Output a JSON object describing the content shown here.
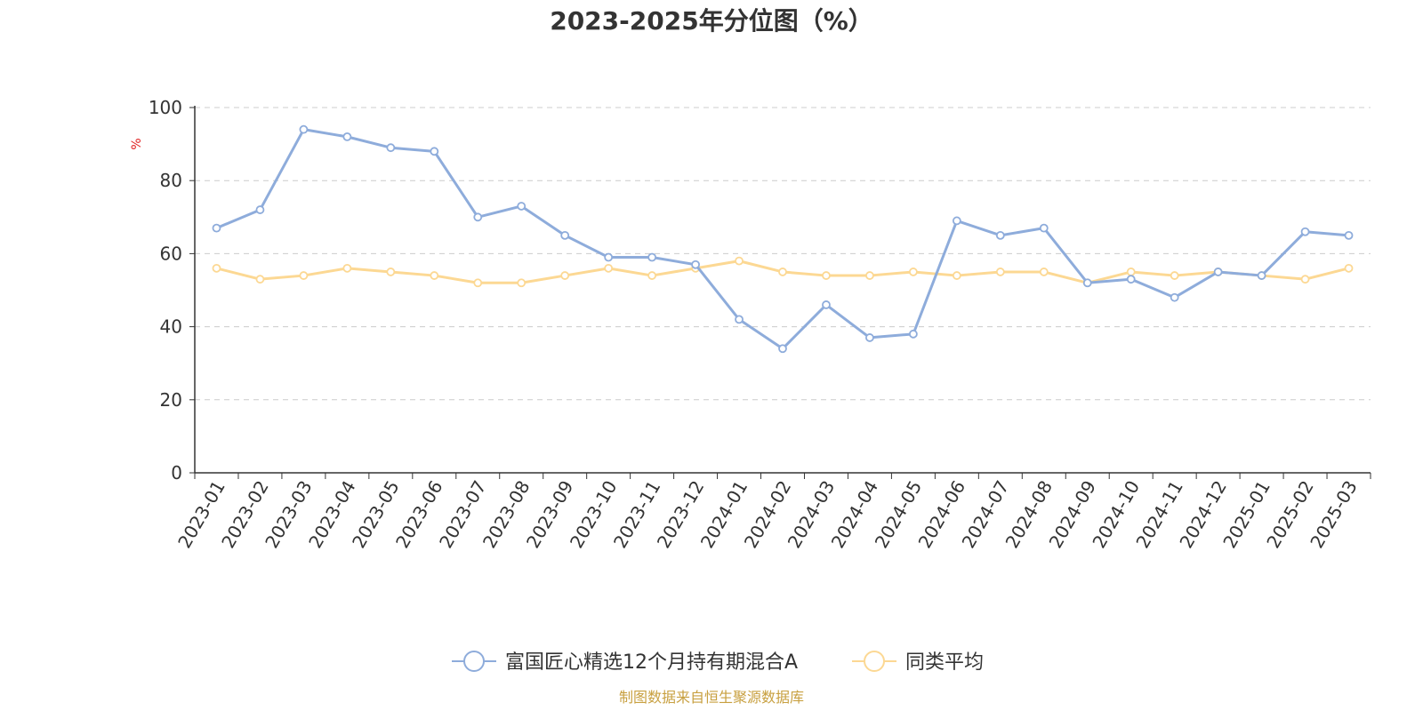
{
  "chart_data": {
    "type": "line",
    "title": "2023-2025年分位图（%）",
    "ylabel": "%",
    "xlabel": "",
    "ylim": [
      0,
      100
    ],
    "yticks": [
      0,
      20,
      40,
      60,
      80,
      100
    ],
    "grid": true,
    "legend_position": "bottom-center",
    "categories": [
      "2023-01",
      "2023-02",
      "2023-03",
      "2023-04",
      "2023-05",
      "2023-06",
      "2023-07",
      "2023-08",
      "2023-09",
      "2023-10",
      "2023-11",
      "2023-12",
      "2024-01",
      "2024-02",
      "2024-03",
      "2024-04",
      "2024-05",
      "2024-06",
      "2024-07",
      "2024-08",
      "2024-09",
      "2024-10",
      "2024-11",
      "2024-12",
      "2025-01",
      "2025-02",
      "2025-03"
    ],
    "series": [
      {
        "name": "富国匠心精选12个月持有期混合A",
        "color": "#8eacdb",
        "values": [
          67,
          72,
          94,
          92,
          89,
          88,
          70,
          73,
          65,
          59,
          59,
          57,
          42,
          34,
          46,
          37,
          38,
          69,
          65,
          67,
          52,
          53,
          48,
          55,
          54,
          66,
          65
        ]
      },
      {
        "name": "同类平均",
        "color": "#fcd893",
        "values": [
          56,
          53,
          54,
          56,
          55,
          54,
          52,
          52,
          54,
          56,
          54,
          56,
          58,
          55,
          54,
          54,
          55,
          54,
          55,
          55,
          52,
          55,
          54,
          55,
          54,
          53,
          56
        ]
      }
    ]
  },
  "source_note": "制图数据来自恒生聚源数据库",
  "colors": {
    "text": "#333333",
    "grid": "#cccccc",
    "ylabel": "#e02020",
    "source": "#c8a040"
  }
}
